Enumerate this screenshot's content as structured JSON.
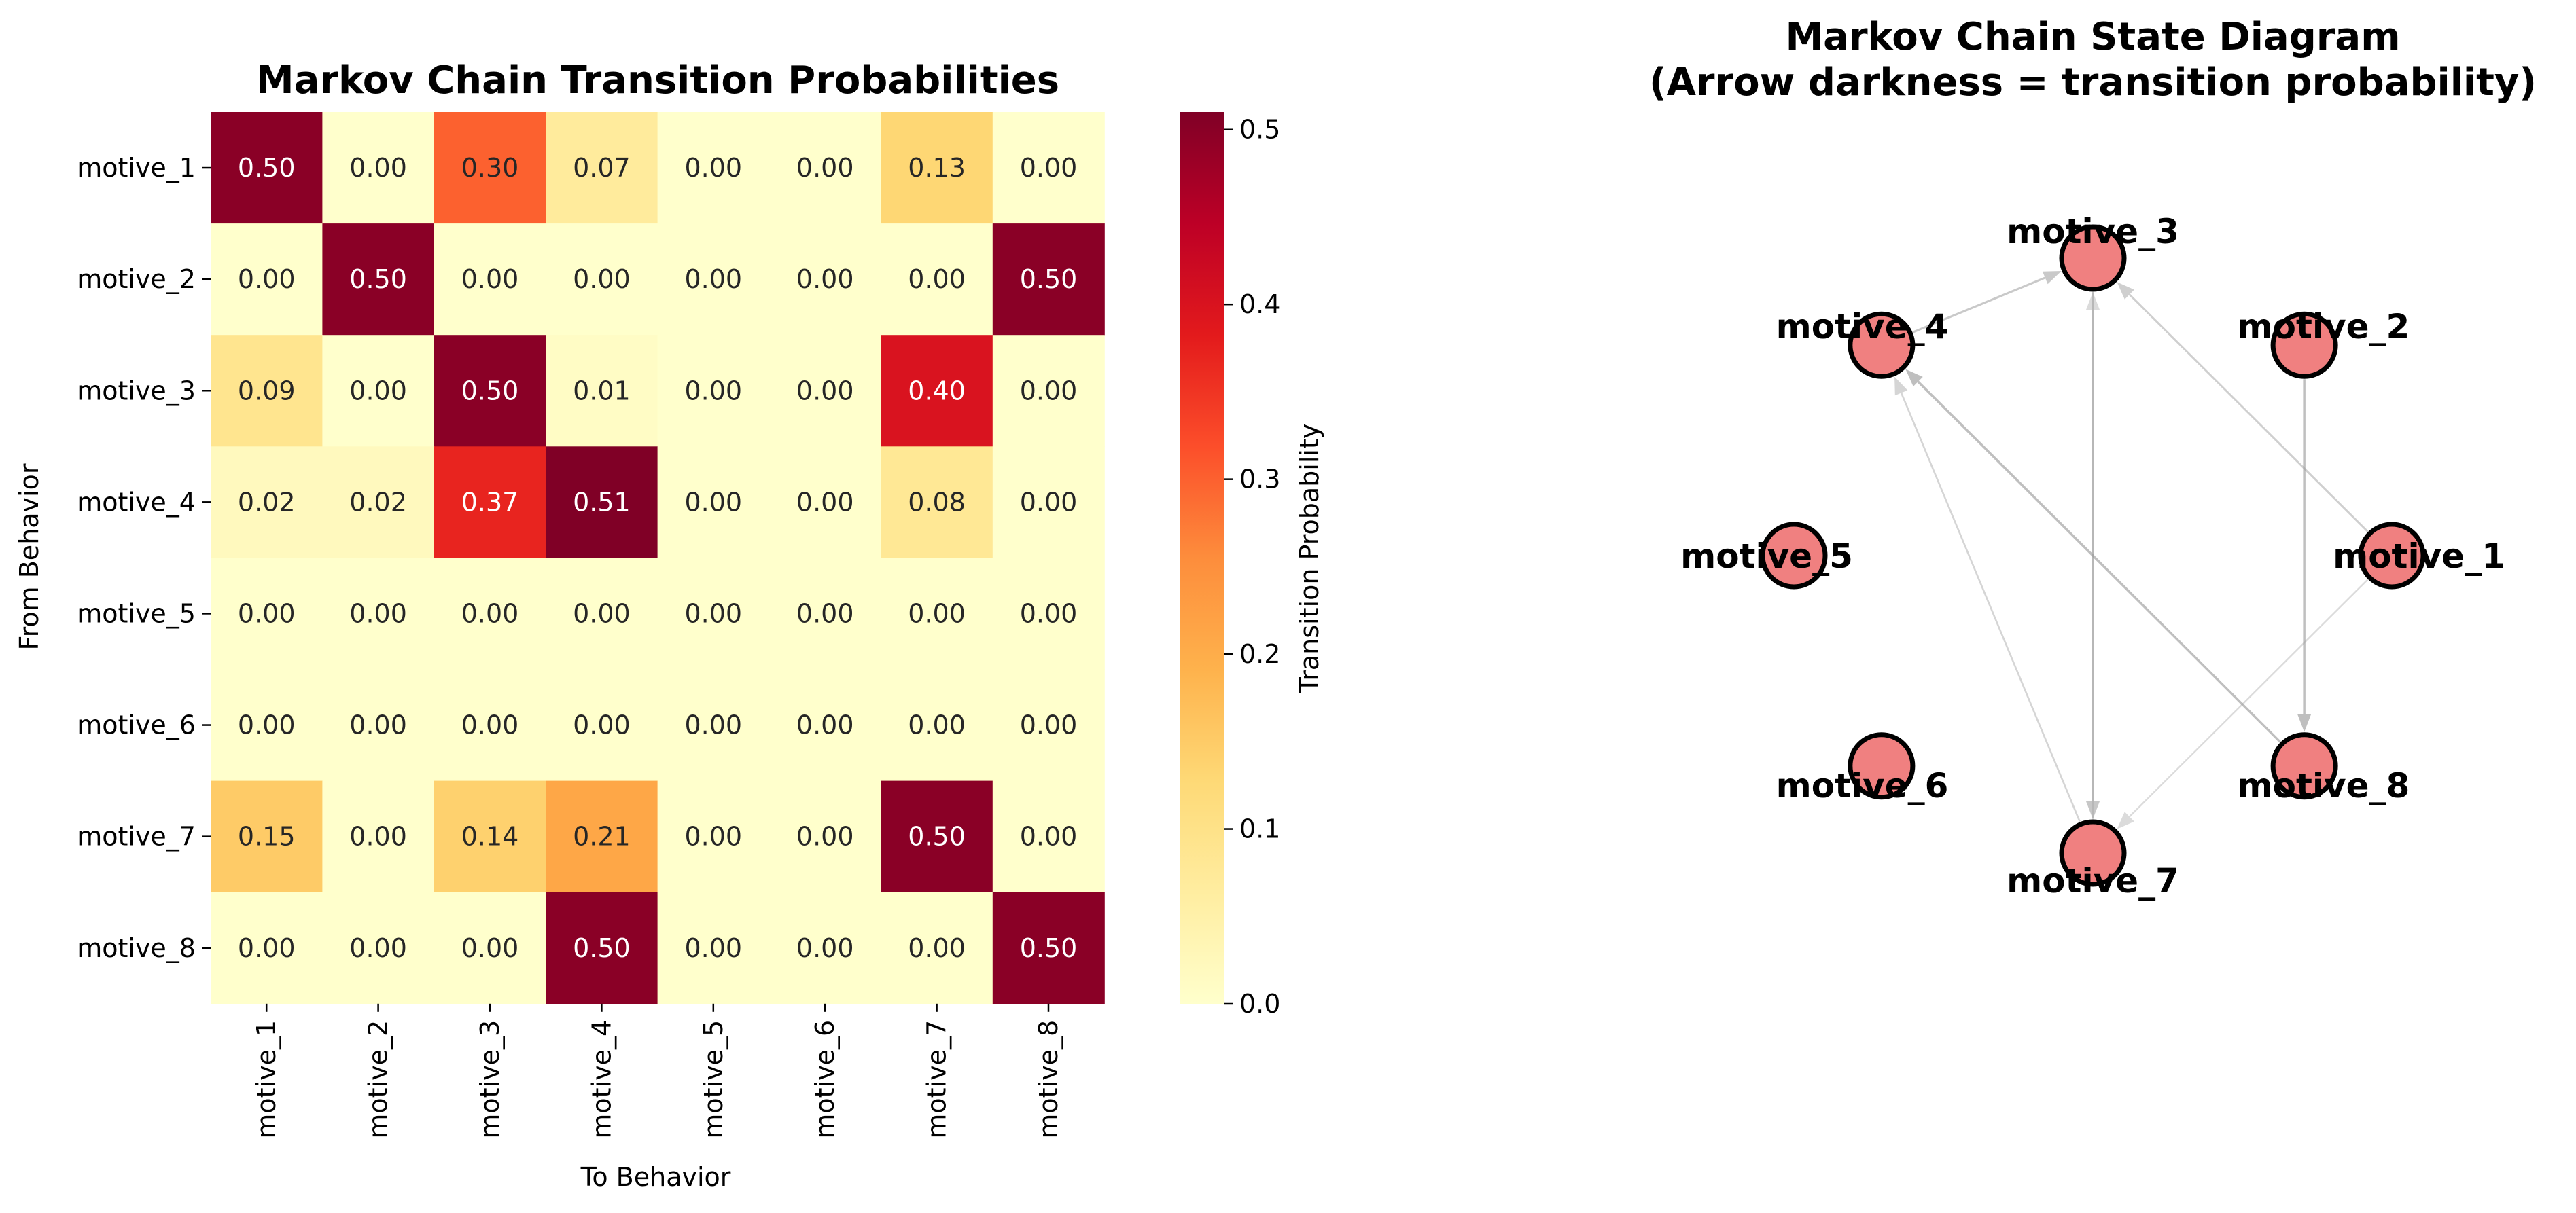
{
  "chart_data": [
    {
      "type": "heatmap",
      "title": "Markov Chain Transition Probabilities",
      "xlabel": "To Behavior",
      "ylabel": "From Behavior",
      "x_categories": [
        "motive_1",
        "motive_2",
        "motive_3",
        "motive_4",
        "motive_5",
        "motive_6",
        "motive_7",
        "motive_8"
      ],
      "y_categories": [
        "motive_1",
        "motive_2",
        "motive_3",
        "motive_4",
        "motive_5",
        "motive_6",
        "motive_7",
        "motive_8"
      ],
      "values": [
        [
          0.5,
          0.0,
          0.3,
          0.07,
          0.0,
          0.0,
          0.13,
          0.0
        ],
        [
          0.0,
          0.5,
          0.0,
          0.0,
          0.0,
          0.0,
          0.0,
          0.5
        ],
        [
          0.09,
          0.0,
          0.5,
          0.01,
          0.0,
          0.0,
          0.4,
          0.0
        ],
        [
          0.02,
          0.02,
          0.37,
          0.51,
          0.0,
          0.0,
          0.08,
          0.0
        ],
        [
          0.0,
          0.0,
          0.0,
          0.0,
          0.0,
          0.0,
          0.0,
          0.0
        ],
        [
          0.0,
          0.0,
          0.0,
          0.0,
          0.0,
          0.0,
          0.0,
          0.0
        ],
        [
          0.15,
          0.0,
          0.14,
          0.21,
          0.0,
          0.0,
          0.5,
          0.0
        ],
        [
          0.0,
          0.0,
          0.0,
          0.5,
          0.0,
          0.0,
          0.0,
          0.5
        ]
      ],
      "value_format": "0.00",
      "colorscale": "YlOrRd",
      "colorbar": {
        "label": "Transition Probability",
        "range": [
          0.0,
          0.51
        ],
        "ticks": [
          "0.0",
          "0.1",
          "0.2",
          "0.3",
          "0.4",
          "0.5"
        ]
      }
    },
    {
      "type": "network",
      "title_lines": [
        "Markov Chain State Diagram",
        "(Arrow darkness = transition probability)"
      ],
      "nodes": [
        "motive_1",
        "motive_2",
        "motive_3",
        "motive_4",
        "motive_5",
        "motive_6",
        "motive_7",
        "motive_8"
      ],
      "node_color": "#f08080",
      "edge_color": "#999999",
      "edges": [
        {
          "from": "motive_1",
          "to": "motive_3",
          "weight": 0.3
        },
        {
          "from": "motive_1",
          "to": "motive_7",
          "weight": 0.13
        },
        {
          "from": "motive_2",
          "to": "motive_8",
          "weight": 0.5
        },
        {
          "from": "motive_3",
          "to": "motive_7",
          "weight": 0.4
        },
        {
          "from": "motive_4",
          "to": "motive_3",
          "weight": 0.37
        },
        {
          "from": "motive_7",
          "to": "motive_3",
          "weight": 0.14
        },
        {
          "from": "motive_7",
          "to": "motive_4",
          "weight": 0.21
        },
        {
          "from": "motive_8",
          "to": "motive_4",
          "weight": 0.5
        }
      ]
    }
  ]
}
